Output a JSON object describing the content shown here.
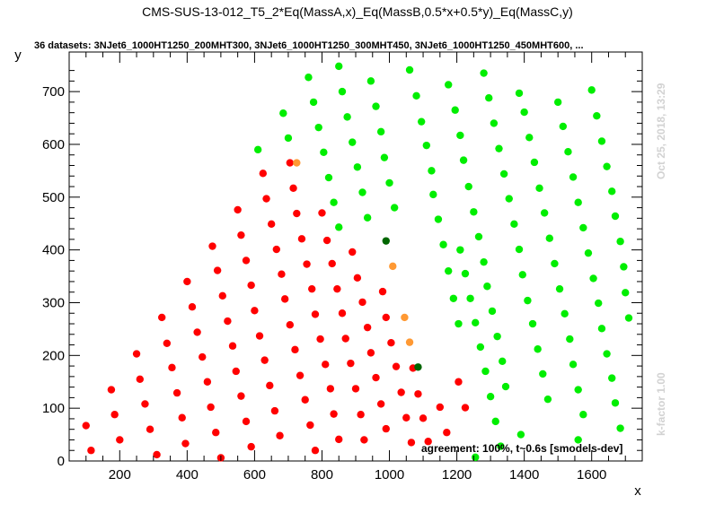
{
  "chart_data": {
    "type": "scatter",
    "title": "CMS-SUS-13-012_T5_2*Eq(MassA,x)_Eq(MassB,0.5*x+0.5*y)_Eq(MassC,y)",
    "subtitle": "36 datasets: 3NJet6_1000HT1250_200MHT300, 3NJet6_1000HT1250_300MHT450, 3NJet6_1000HT1250_450MHT600,  ...",
    "xlabel": "x",
    "ylabel": "y",
    "xlim": [
      50,
      1750
    ],
    "ylim": [
      0,
      775
    ],
    "xticks": [
      200,
      400,
      600,
      800,
      1000,
      1200,
      1400,
      1600
    ],
    "yticks": [
      0,
      100,
      200,
      300,
      400,
      500,
      600,
      700
    ],
    "timestamp": "Oct 25, 2018, 13:29",
    "kfactor": "k-factor 1.00",
    "agreement": "agreement: 100%, t~0.6s [smodels-dev]",
    "colors": {
      "red": "#ff0000",
      "green": "#00ee00",
      "orange": "#ff9933",
      "darkgreen": "#006600"
    },
    "series": [
      {
        "color": "red",
        "points": [
          [
            100,
            67
          ],
          [
            115,
            20
          ],
          [
            175,
            135
          ],
          [
            185,
            88
          ],
          [
            200,
            40
          ],
          [
            250,
            203
          ],
          [
            260,
            155
          ],
          [
            275,
            108
          ],
          [
            290,
            60
          ],
          [
            310,
            12
          ],
          [
            325,
            272
          ],
          [
            340,
            223
          ],
          [
            355,
            177
          ],
          [
            370,
            129
          ],
          [
            385,
            82
          ],
          [
            395,
            33
          ],
          [
            400,
            340
          ],
          [
            415,
            292
          ],
          [
            430,
            244
          ],
          [
            445,
            197
          ],
          [
            460,
            150
          ],
          [
            470,
            102
          ],
          [
            485,
            54
          ],
          [
            500,
            6
          ],
          [
            475,
            407
          ],
          [
            490,
            361
          ],
          [
            505,
            313
          ],
          [
            520,
            265
          ],
          [
            535,
            218
          ],
          [
            545,
            170
          ],
          [
            560,
            123
          ],
          [
            575,
            75
          ],
          [
            590,
            27
          ],
          [
            550,
            476
          ],
          [
            560,
            428
          ],
          [
            575,
            380
          ],
          [
            590,
            333
          ],
          [
            600,
            285
          ],
          [
            615,
            237
          ],
          [
            630,
            191
          ],
          [
            645,
            143
          ],
          [
            660,
            95
          ],
          [
            675,
            48
          ],
          [
            625,
            545
          ],
          [
            635,
            497
          ],
          [
            650,
            449
          ],
          [
            665,
            401
          ],
          [
            680,
            354
          ],
          [
            690,
            307
          ],
          [
            705,
            258
          ],
          [
            720,
            211
          ],
          [
            735,
            162
          ],
          [
            750,
            116
          ],
          [
            765,
            68
          ],
          [
            780,
            20
          ],
          [
            705,
            565
          ],
          [
            715,
            517
          ],
          [
            725,
            469
          ],
          [
            740,
            421
          ],
          [
            755,
            373
          ],
          [
            770,
            326
          ],
          [
            780,
            278
          ],
          [
            795,
            231
          ],
          [
            810,
            183
          ],
          [
            825,
            137
          ],
          [
            835,
            89
          ],
          [
            850,
            41
          ],
          [
            800,
            470
          ],
          [
            815,
            418
          ],
          [
            830,
            374
          ],
          [
            845,
            326
          ],
          [
            860,
            280
          ],
          [
            870,
            232
          ],
          [
            885,
            185
          ],
          [
            900,
            137
          ],
          [
            915,
            88
          ],
          [
            925,
            40
          ],
          [
            890,
            396
          ],
          [
            905,
            347
          ],
          [
            920,
            301
          ],
          [
            935,
            253
          ],
          [
            945,
            205
          ],
          [
            960,
            158
          ],
          [
            975,
            108
          ],
          [
            990,
            61
          ],
          [
            980,
            321
          ],
          [
            990,
            272
          ],
          [
            1005,
            224
          ],
          [
            1020,
            179
          ],
          [
            1035,
            130
          ],
          [
            1050,
            82
          ],
          [
            1065,
            35
          ],
          [
            1070,
            176
          ],
          [
            1085,
            127
          ],
          [
            1100,
            81
          ],
          [
            1115,
            37
          ],
          [
            1150,
            102
          ],
          [
            1170,
            54
          ],
          [
            1205,
            150
          ],
          [
            1225,
            101
          ]
        ]
      },
      {
        "color": "orange",
        "points": [
          [
            725,
            565
          ],
          [
            1010,
            369
          ],
          [
            1045,
            272
          ],
          [
            1060,
            225
          ]
        ]
      },
      {
        "color": "darkgreen",
        "points": [
          [
            990,
            417
          ],
          [
            1085,
            178
          ]
        ]
      },
      {
        "color": "green",
        "points": [
          [
            610,
            590
          ],
          [
            685,
            659
          ],
          [
            700,
            612
          ],
          [
            760,
            727
          ],
          [
            775,
            680
          ],
          [
            790,
            632
          ],
          [
            805,
            585
          ],
          [
            820,
            537
          ],
          [
            835,
            490
          ],
          [
            850,
            443
          ],
          [
            850,
            748
          ],
          [
            860,
            700
          ],
          [
            875,
            652
          ],
          [
            890,
            604
          ],
          [
            905,
            557
          ],
          [
            920,
            509
          ],
          [
            935,
            461
          ],
          [
            945,
            720
          ],
          [
            960,
            672
          ],
          [
            975,
            624
          ],
          [
            985,
            575
          ],
          [
            1000,
            527
          ],
          [
            1015,
            480
          ],
          [
            1060,
            741
          ],
          [
            1080,
            692
          ],
          [
            1095,
            643
          ],
          [
            1110,
            598
          ],
          [
            1125,
            550
          ],
          [
            1130,
            505
          ],
          [
            1145,
            458
          ],
          [
            1160,
            410
          ],
          [
            1175,
            360
          ],
          [
            1190,
            308
          ],
          [
            1205,
            260
          ],
          [
            1175,
            713
          ],
          [
            1195,
            665
          ],
          [
            1210,
            617
          ],
          [
            1220,
            570
          ],
          [
            1235,
            520
          ],
          [
            1250,
            472
          ],
          [
            1265,
            425
          ],
          [
            1280,
            377
          ],
          [
            1290,
            331
          ],
          [
            1305,
            284
          ],
          [
            1320,
            236
          ],
          [
            1335,
            189
          ],
          [
            1345,
            141
          ],
          [
            1280,
            735
          ],
          [
            1295,
            688
          ],
          [
            1310,
            640
          ],
          [
            1325,
            592
          ],
          [
            1340,
            544
          ],
          [
            1355,
            497
          ],
          [
            1370,
            449
          ],
          [
            1385,
            401
          ],
          [
            1395,
            353
          ],
          [
            1410,
            304
          ],
          [
            1425,
            260
          ],
          [
            1440,
            212
          ],
          [
            1455,
            165
          ],
          [
            1470,
            117
          ],
          [
            1385,
            697
          ],
          [
            1400,
            661
          ],
          [
            1415,
            613
          ],
          [
            1430,
            566
          ],
          [
            1445,
            517
          ],
          [
            1460,
            470
          ],
          [
            1475,
            422
          ],
          [
            1490,
            374
          ],
          [
            1505,
            326
          ],
          [
            1520,
            279
          ],
          [
            1535,
            231
          ],
          [
            1545,
            183
          ],
          [
            1560,
            135
          ],
          [
            1575,
            88
          ],
          [
            1500,
            680
          ],
          [
            1515,
            634
          ],
          [
            1530,
            586
          ],
          [
            1545,
            538
          ],
          [
            1560,
            490
          ],
          [
            1575,
            442
          ],
          [
            1590,
            394
          ],
          [
            1605,
            346
          ],
          [
            1620,
            299
          ],
          [
            1630,
            251
          ],
          [
            1645,
            203
          ],
          [
            1660,
            157
          ],
          [
            1670,
            110
          ],
          [
            1685,
            62
          ],
          [
            1600,
            703
          ],
          [
            1615,
            654
          ],
          [
            1630,
            606
          ],
          [
            1645,
            558
          ],
          [
            1660,
            511
          ],
          [
            1670,
            464
          ],
          [
            1685,
            416
          ],
          [
            1695,
            368
          ],
          [
            1700,
            319
          ],
          [
            1710,
            271
          ],
          [
            1210,
            400
          ],
          [
            1225,
            355
          ],
          [
            1240,
            308
          ],
          [
            1255,
            262
          ],
          [
            1270,
            216
          ],
          [
            1285,
            170
          ],
          [
            1300,
            122
          ],
          [
            1315,
            75
          ],
          [
            1330,
            28
          ],
          [
            1255,
            7
          ],
          [
            1390,
            50
          ],
          [
            1560,
            40
          ]
        ]
      }
    ]
  }
}
